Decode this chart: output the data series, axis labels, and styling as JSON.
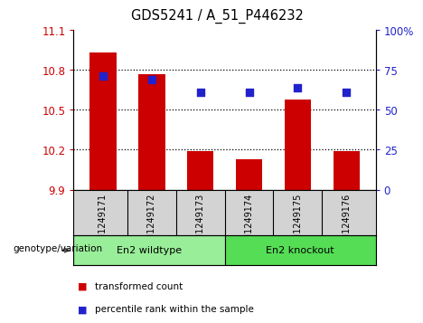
{
  "title": "GDS5241 / A_51_P446232",
  "samples": [
    "GSM1249171",
    "GSM1249172",
    "GSM1249173",
    "GSM1249174",
    "GSM1249175",
    "GSM1249176"
  ],
  "bar_values": [
    10.93,
    10.77,
    10.19,
    10.13,
    10.58,
    10.19
  ],
  "dot_values": [
    10.755,
    10.73,
    10.635,
    10.635,
    10.665,
    10.635
  ],
  "bar_color": "#cc0000",
  "dot_color": "#2222cc",
  "ymin": 9.9,
  "ymax": 11.1,
  "yticks_left": [
    9.9,
    10.2,
    10.5,
    10.8,
    11.1
  ],
  "ytick_labels_left": [
    "9.9",
    "10.2",
    "10.5",
    "10.8",
    "11.1"
  ],
  "yticks_right_vals": [
    0,
    25,
    50,
    75,
    100
  ],
  "ytick_labels_right": [
    "0",
    "25",
    "50",
    "75",
    "100%"
  ],
  "grid_lines": [
    10.2,
    10.5,
    10.8
  ],
  "group1_label": "En2 wildtype",
  "group2_label": "En2 knockout",
  "group1_color": "#99ee99",
  "group2_color": "#55dd55",
  "xlabel_row": "genotype/variation",
  "legend1_label": "transformed count",
  "legend2_label": "percentile rank within the sample",
  "tick_label_bg": "#d3d3d3",
  "plot_bg": "#ffffff",
  "bar_bottom": 9.9
}
